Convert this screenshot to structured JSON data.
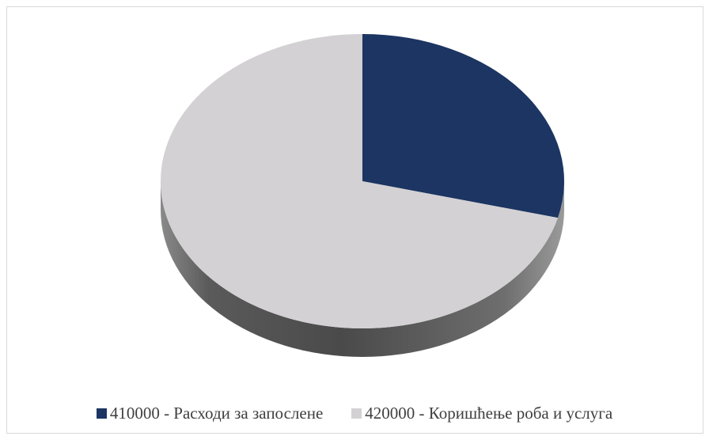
{
  "chart_data": {
    "type": "pie",
    "style": "3d",
    "title": "",
    "legend_position": "bottom",
    "slices": [
      {
        "label": "410000 - Расходи за запослене",
        "value": 29,
        "color": "#1c3563"
      },
      {
        "label": "420000 - Коришћење роба и услуга",
        "value": 71,
        "color": "#d3d1d3"
      }
    ]
  }
}
